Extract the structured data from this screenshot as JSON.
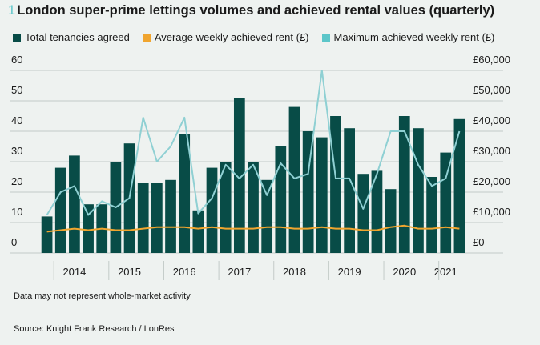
{
  "title_number": "1",
  "title_text": "London super-prime lettings volumes and achieved rental values (quarterly)",
  "note": "Data may not represent whole-market activity",
  "source": "Source: Knight Frank Research / LonRes",
  "colors": {
    "bars": "#084c47",
    "avg_rent": "#f0a52f",
    "max_rent": "#8fd0d3",
    "grid": "#c3cbc8",
    "background": "#eef2f0"
  },
  "chart_data": {
    "type": "bar",
    "x": [
      "2013 Q4",
      "2014 Q1",
      "2014 Q2",
      "2014 Q3",
      "2014 Q4",
      "2015 Q1",
      "2015 Q2",
      "2015 Q3",
      "2015 Q4",
      "2016 Q1",
      "2016 Q2",
      "2016 Q3",
      "2016 Q4",
      "2017 Q1",
      "2017 Q2",
      "2017 Q3",
      "2017 Q4",
      "2018 Q1",
      "2018 Q2",
      "2018 Q3",
      "2018 Q4",
      "2019 Q1",
      "2019 Q2",
      "2019 Q3",
      "2019 Q4",
      "2020 Q1",
      "2020 Q2",
      "2020 Q3",
      "2020 Q4",
      "2021 Q1",
      "2021 Q2"
    ],
    "year_labels": [
      "2014",
      "2015",
      "2016",
      "2017",
      "2018",
      "2019",
      "2020",
      "2021"
    ],
    "year_label_positions": [
      2.5,
      6.5,
      10.5,
      14.5,
      18.5,
      22.5,
      26.5,
      29.5
    ],
    "series": [
      {
        "name": "Total tenancies agreed",
        "axis": "left",
        "kind": "bar",
        "values": [
          12,
          28,
          32,
          16,
          16,
          30,
          36,
          23,
          23,
          24,
          39,
          14,
          28,
          30,
          51,
          30,
          24,
          35,
          48,
          40,
          38,
          45,
          41,
          26,
          27,
          21,
          45,
          41,
          25,
          33,
          44
        ]
      },
      {
        "name": "Average weekly achieved rent (£)",
        "axis": "right",
        "kind": "line",
        "values": [
          7000,
          7500,
          8000,
          7500,
          8000,
          7500,
          7500,
          8000,
          8500,
          8500,
          8500,
          8000,
          8500,
          8000,
          8000,
          8000,
          8500,
          8500,
          8000,
          8000,
          8500,
          8000,
          8000,
          7500,
          7500,
          8500,
          9000,
          8000,
          8000,
          8500,
          8000
        ]
      },
      {
        "name": "Maximum achieved weekly rent (£)",
        "axis": "right",
        "kind": "line",
        "values": [
          12500,
          20000,
          22000,
          12500,
          17000,
          15000,
          18000,
          44500,
          30000,
          35000,
          44500,
          13000,
          18000,
          29000,
          24500,
          29000,
          19000,
          29500,
          24500,
          26000,
          60000,
          24500,
          24500,
          14500,
          26000,
          40000,
          40000,
          29000,
          22000,
          24500,
          40000
        ]
      }
    ],
    "y_left": {
      "ticks": [
        0,
        10,
        20,
        30,
        40,
        50,
        60
      ],
      "ylim": [
        0,
        60
      ]
    },
    "y_right": {
      "ticks": [
        "£0",
        "£10,000",
        "£20,000",
        "£30,000",
        "£40,000",
        "£50,000",
        "£60,000"
      ],
      "ylim": [
        0,
        60000
      ]
    },
    "grid": "horizontal"
  }
}
